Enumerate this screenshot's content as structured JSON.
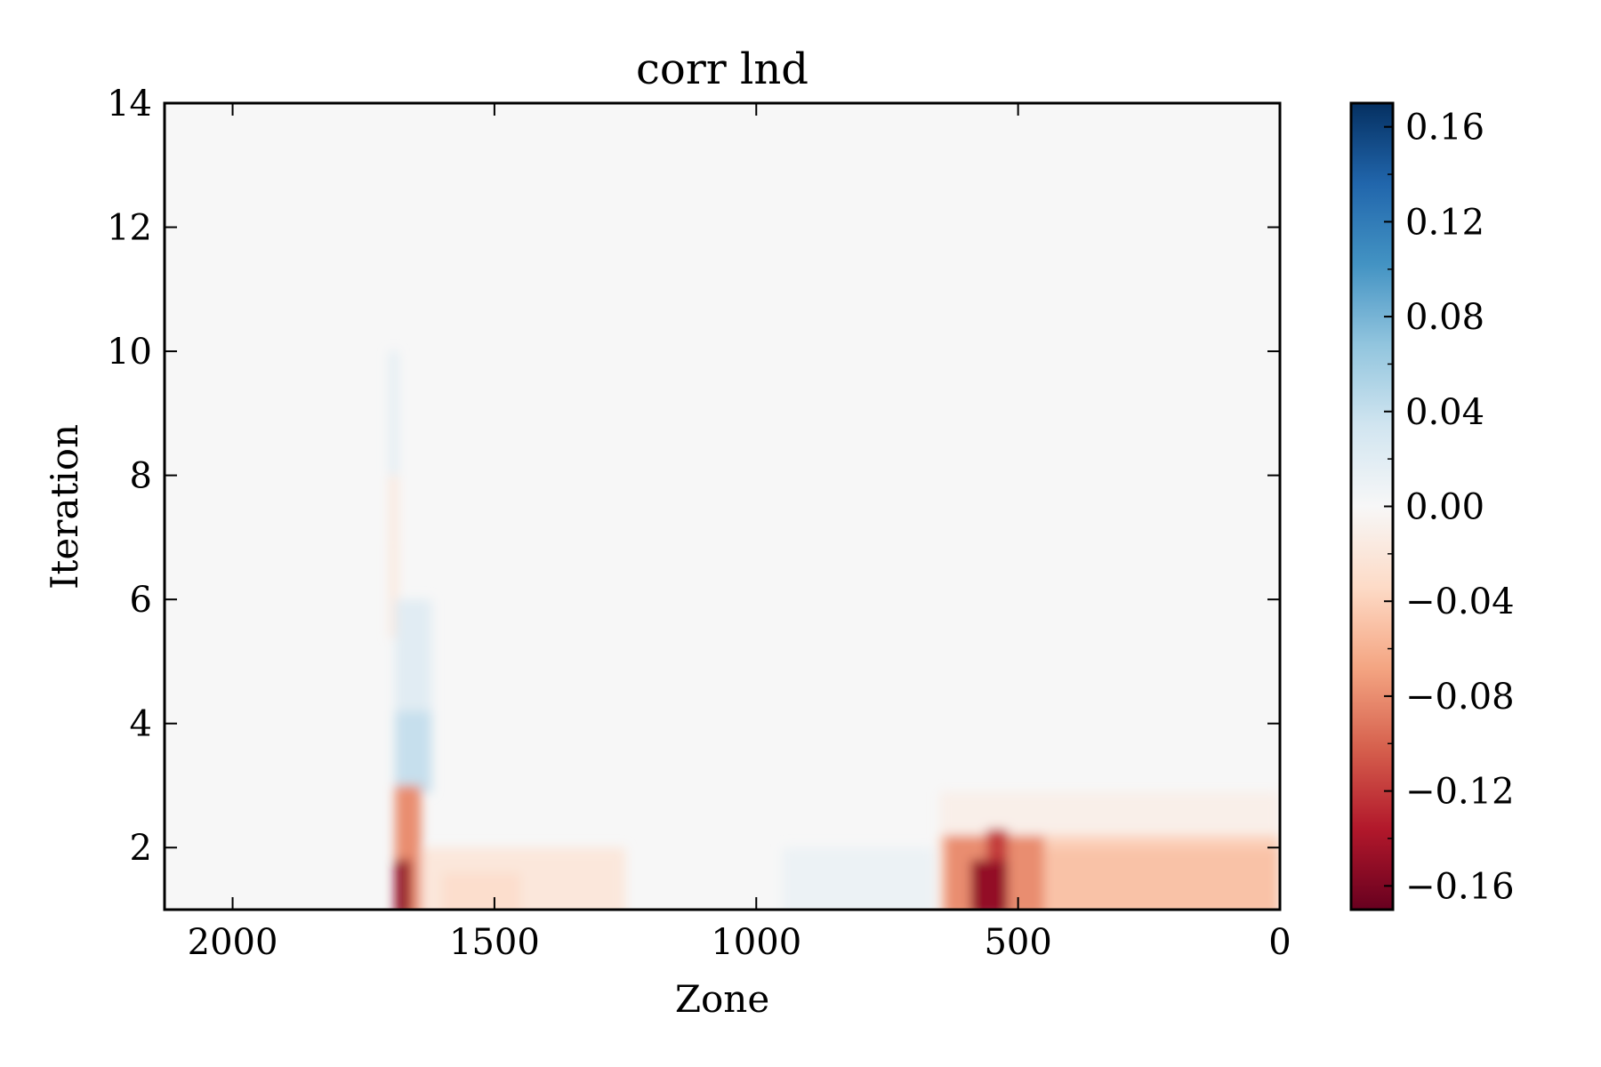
{
  "chart_data": {
    "type": "heatmap",
    "title": "corr lnd",
    "xlabel": "Zone",
    "ylabel": "Iteration",
    "xlim": [
      2130,
      0
    ],
    "ylim": [
      1,
      14
    ],
    "x_ticks": [
      2000,
      1500,
      1000,
      500,
      0
    ],
    "x_tick_labels": [
      "2000",
      "1500",
      "1000",
      "500",
      "0"
    ],
    "y_ticks": [
      2,
      4,
      6,
      8,
      10,
      12,
      14
    ],
    "y_tick_labels": [
      "2",
      "4",
      "6",
      "8",
      "10",
      "12",
      "14"
    ],
    "colormap": "RdBu",
    "colorbar": {
      "min": -0.17,
      "max": 0.17,
      "ticks": [
        0.16,
        0.12,
        0.08,
        0.04,
        0.0,
        -0.04,
        -0.08,
        -0.12,
        -0.16
      ],
      "tick_labels": [
        "0.16",
        "0.12",
        "0.08",
        "0.04",
        "0.00",
        "−0.04",
        "−0.08",
        "−0.12",
        "−0.16"
      ]
    },
    "background_value": 0.0,
    "regions": [
      {
        "zone": [
          1700,
          1685
        ],
        "iteration": [
          7,
          10
        ],
        "value": 0.02
      },
      {
        "zone": [
          1700,
          1685
        ],
        "iteration": [
          5.5,
          8
        ],
        "value": -0.02
      },
      {
        "zone": [
          1690,
          1620
        ],
        "iteration": [
          3,
          6
        ],
        "value": 0.02
      },
      {
        "zone": [
          1690,
          1620
        ],
        "iteration": [
          3,
          4.2
        ],
        "value": 0.04
      },
      {
        "zone": [
          1690,
          1640
        ],
        "iteration": [
          1,
          3
        ],
        "value": -0.08
      },
      {
        "zone": [
          1690,
          1660
        ],
        "iteration": [
          1,
          1.8
        ],
        "value": -0.15
      },
      {
        "zone": [
          1640,
          1250
        ],
        "iteration": [
          1,
          2
        ],
        "value": -0.02
      },
      {
        "zone": [
          1600,
          1450
        ],
        "iteration": [
          1,
          1.6
        ],
        "value": -0.03
      },
      {
        "zone": [
          950,
          660
        ],
        "iteration": [
          1,
          2
        ],
        "value": 0.01
      },
      {
        "zone": [
          650,
          0
        ],
        "iteration": [
          1,
          2.9
        ],
        "value": -0.01
      },
      {
        "zone": [
          650,
          0
        ],
        "iteration": [
          1,
          2.2
        ],
        "value": -0.04
      },
      {
        "zone": [
          640,
          450
        ],
        "iteration": [
          1,
          2.2
        ],
        "value": -0.08
      },
      {
        "zone": [
          590,
          520
        ],
        "iteration": [
          1,
          1.8
        ],
        "value": -0.15
      },
      {
        "zone": [
          560,
          520
        ],
        "iteration": [
          1.9,
          2.3
        ],
        "value": -0.12
      },
      {
        "zone": [
          450,
          0
        ],
        "iteration": [
          1,
          2.0
        ],
        "value": -0.05
      }
    ]
  }
}
